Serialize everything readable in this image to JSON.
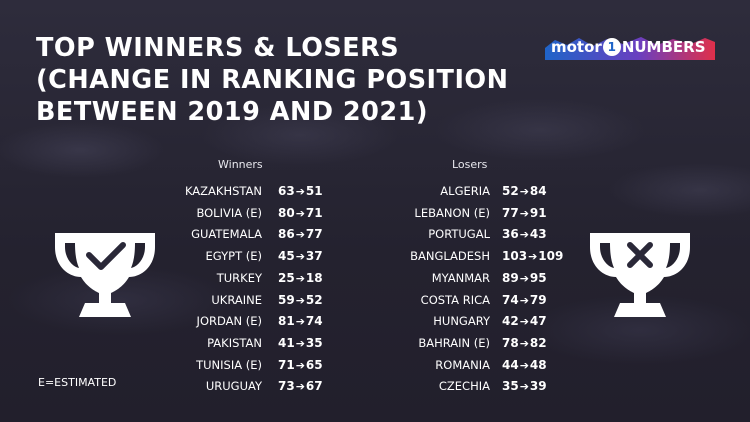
{
  "title": [
    "TOP WINNERS & LOSERS",
    "(CHANGE IN RANKING POSITION",
    "BETWEEN 2019 AND 2021)"
  ],
  "logo": {
    "left": "motor",
    "mid": "1",
    "right": "NUMBERS"
  },
  "winners": {
    "header": "Winners",
    "rows": [
      {
        "name": "KAZAKHSTAN",
        "from": "63",
        "to": "51"
      },
      {
        "name": "BOLIVIA (E)",
        "from": "80",
        "to": "71"
      },
      {
        "name": "GUATEMALA",
        "from": "86",
        "to": "77"
      },
      {
        "name": "EGYPT (E)",
        "from": "45",
        "to": "37"
      },
      {
        "name": "TURKEY",
        "from": "25",
        "to": "18"
      },
      {
        "name": "UKRAINE",
        "from": "59",
        "to": "52"
      },
      {
        "name": "JORDAN (E)",
        "from": "81",
        "to": "74"
      },
      {
        "name": "PAKISTAN",
        "from": "41",
        "to": "35"
      },
      {
        "name": "TUNISIA (E)",
        "from": "71",
        "to": "65"
      },
      {
        "name": "URUGUAY",
        "from": "73",
        "to": "67"
      }
    ]
  },
  "losers": {
    "header": "Losers",
    "rows": [
      {
        "name": "ALGERIA",
        "from": "52",
        "to": "84"
      },
      {
        "name": "LEBANON (E)",
        "from": "77",
        "to": "91"
      },
      {
        "name": "PORTUGAL",
        "from": "36",
        "to": "43"
      },
      {
        "name": "BANGLADESH",
        "from": "103",
        "to": "109"
      },
      {
        "name": "MYANMAR",
        "from": "89",
        "to": "95"
      },
      {
        "name": "COSTA RICA",
        "from": "74",
        "to": "79"
      },
      {
        "name": "HUNGARY",
        "from": "42",
        "to": "47"
      },
      {
        "name": "BAHRAIN (E)",
        "from": "78",
        "to": "82"
      },
      {
        "name": "ROMANIA",
        "from": "44",
        "to": "48"
      },
      {
        "name": "CZECHIA",
        "from": "35",
        "to": "39"
      }
    ]
  },
  "note": "E=ESTIMATED",
  "icons": {
    "winner": "trophy-check-icon",
    "loser": "trophy-x-icon",
    "arrow": "arrow-right-icon"
  },
  "colors": {
    "background": "#2a2838",
    "text": "#ffffff",
    "logo_blue": "#1f64c8",
    "logo_red": "#e0304a"
  }
}
